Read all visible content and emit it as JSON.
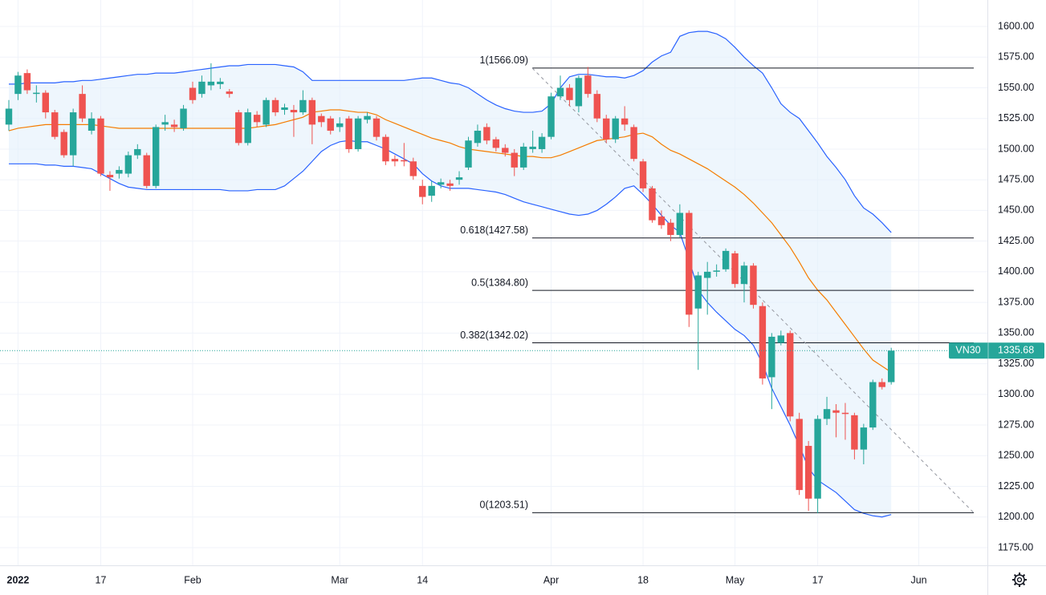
{
  "chart_data": {
    "type": "candlestick",
    "symbol": "VN30",
    "last_price": 1335.68,
    "ylim": [
      1160.6,
      1621.6
    ],
    "yticks": [
      {
        "value": 1175,
        "label": "1175.00"
      },
      {
        "value": 1200,
        "label": "1200.00"
      },
      {
        "value": 1225,
        "label": "1225.00"
      },
      {
        "value": 1250,
        "label": "1250.00"
      },
      {
        "value": 1275,
        "label": "1275.00"
      },
      {
        "value": 1300,
        "label": "1300.00"
      },
      {
        "value": 1325,
        "label": "1325.00"
      },
      {
        "value": 1350,
        "label": "1350.00"
      },
      {
        "value": 1375,
        "label": "1375.00"
      },
      {
        "value": 1400,
        "label": "1400.00"
      },
      {
        "value": 1425,
        "label": "1425.00"
      },
      {
        "value": 1450,
        "label": "1450.00"
      },
      {
        "value": 1475,
        "label": "1475.00"
      },
      {
        "value": 1500,
        "label": "1500.00"
      },
      {
        "value": 1525,
        "label": "1525.00"
      },
      {
        "value": 1550,
        "label": "1550.00"
      },
      {
        "value": 1575,
        "label": "1575.00"
      },
      {
        "value": 1600,
        "label": "1600.00"
      }
    ],
    "grid": true,
    "up_color": "#26a69a",
    "down_color": "#ef5350",
    "categories": [
      null,
      "2022",
      null,
      null,
      null,
      null,
      null,
      null,
      null,
      null,
      "17",
      null,
      null,
      null,
      null,
      null,
      null,
      null,
      null,
      null,
      "Feb",
      null,
      null,
      null,
      null,
      null,
      null,
      null,
      null,
      null,
      null,
      null,
      null,
      null,
      null,
      null,
      "Mar",
      null,
      null,
      null,
      null,
      null,
      null,
      null,
      null,
      "14",
      null,
      null,
      null,
      null,
      null,
      null,
      null,
      null,
      null,
      null,
      null,
      null,
      null,
      "Apr",
      null,
      null,
      null,
      null,
      null,
      null,
      null,
      null,
      null,
      "18",
      null,
      null,
      null,
      null,
      null,
      null,
      null,
      null,
      null,
      "May",
      null,
      null,
      null,
      null,
      null,
      null,
      null,
      null,
      "17",
      null,
      null,
      null,
      null,
      null,
      null,
      null,
      null,
      null,
      null,
      "Jun",
      null,
      null,
      null,
      null,
      null,
      null,
      null
    ],
    "open": [
      1520,
      1545,
      1562,
      1545,
      1546,
      1530,
      1514,
      1495,
      1545,
      1515,
      1525,
      1479,
      1480,
      1480,
      1495,
      1495,
      1470,
      1520,
      1520,
      1517,
      1550,
      1545,
      1552,
      1553,
      1547,
      1530,
      1505,
      1528,
      1520,
      1540,
      1532,
      1532,
      1530,
      1540,
      1527,
      1525,
      1518,
      1525,
      1500,
      1524,
      1525,
      1510,
      1492,
      1491,
      1490,
      1470,
      1462,
      1471,
      1472,
      1475,
      1485,
      1505,
      1518,
      1508,
      1501,
      1497,
      1485,
      1500,
      1500,
      1510,
      1543,
      1550,
      1535,
      1560,
      1545,
      1525,
      1508,
      1525,
      1518,
      1490,
      1468,
      1445,
      1440,
      1430,
      1448,
      1370,
      1395,
      1400,
      1402,
      1415,
      1390,
      1405,
      1372,
      1314,
      1342,
      1350,
      1280,
      1258,
      1215,
      1280,
      1287,
      1285,
      1283,
      1255,
      1273,
      1310,
      1310,
      null,
      null,
      null,
      null,
      null,
      null,
      null,
      null,
      null,
      null
    ],
    "high": [
      1540,
      1563,
      1565,
      1552,
      1548,
      1532,
      1516,
      1533,
      1552,
      1530,
      1527,
      1482,
      1486,
      1498,
      1504,
      1497,
      1520,
      1528,
      1524,
      1536,
      1555,
      1560,
      1570,
      1558,
      1549,
      1532,
      1533,
      1531,
      1542,
      1542,
      1537,
      1536,
      1548,
      1542,
      1529,
      1527,
      1526,
      1527,
      1527,
      1530,
      1527,
      1512,
      1495,
      1505,
      1493,
      1475,
      1474,
      1476,
      1475,
      1482,
      1510,
      1520,
      1521,
      1510,
      1504,
      1500,
      1505,
      1515,
      1513,
      1546,
      1560,
      1553,
      1560,
      1567,
      1548,
      1528,
      1527,
      1535,
      1520,
      1492,
      1470,
      1450,
      1443,
      1455,
      1450,
      1400,
      1408,
      1406,
      1419,
      1417,
      1408,
      1407,
      1375,
      1350,
      1352,
      1352,
      1285,
      1262,
      1283,
      1298,
      1292,
      1293,
      1285,
      1276,
      1312,
      1313,
      1338,
      null,
      null,
      null,
      null,
      null,
      null,
      null,
      null,
      null,
      null
    ],
    "low": [
      1515,
      1540,
      1545,
      1538,
      1525,
      1508,
      1493,
      1486,
      1522,
      1512,
      1478,
      1466,
      1476,
      1477,
      1492,
      1468,
      1468,
      1515,
      1514,
      1515,
      1537,
      1542,
      1548,
      1549,
      1542,
      1503,
      1503,
      1518,
      1518,
      1527,
      1528,
      1510,
      1528,
      1504,
      1518,
      1512,
      1514,
      1497,
      1498,
      1521,
      1507,
      1487,
      1486,
      1486,
      1475,
      1455,
      1457,
      1468,
      1466,
      1471,
      1483,
      1502,
      1504,
      1498,
      1494,
      1478,
      1483,
      1497,
      1497,
      1508,
      1540,
      1535,
      1530,
      1542,
      1522,
      1505,
      1505,
      1515,
      1490,
      1465,
      1440,
      1435,
      1425,
      1428,
      1355,
      1320,
      1365,
      1396,
      1400,
      1387,
      1375,
      1370,
      1308,
      1288,
      1340,
      1278,
      1218,
      1205,
      1203,
      1275,
      1265,
      1263,
      1247,
      1243,
      1271,
      1304,
      1308,
      null,
      null,
      null,
      null,
      null,
      null,
      null,
      null,
      null,
      null
    ],
    "close": [
      1533,
      1560,
      1548,
      1546,
      1530,
      1510,
      1495,
      1530,
      1525,
      1525,
      1480,
      1477,
      1483,
      1495,
      1500,
      1470,
      1518,
      1522,
      1518,
      1533,
      1540,
      1555,
      1555,
      1555,
      1545,
      1505,
      1530,
      1522,
      1540,
      1530,
      1534,
      1530,
      1540,
      1520,
      1522,
      1515,
      1521,
      1500,
      1525,
      1527,
      1510,
      1490,
      1490,
      1490,
      1478,
      1461,
      1470,
      1473,
      1470,
      1477,
      1507,
      1515,
      1507,
      1501,
      1497,
      1485,
      1502,
      1502,
      1510,
      1543,
      1550,
      1540,
      1558,
      1545,
      1525,
      1508,
      1525,
      1520,
      1492,
      1468,
      1442,
      1438,
      1430,
      1448,
      1365,
      1397,
      1400,
      1401,
      1417,
      1390,
      1405,
      1373,
      1313,
      1347,
      1348,
      1282,
      1222,
      1215,
      1280,
      1288,
      1285,
      1284,
      1255,
      1273,
      1310,
      1306,
      1335.68,
      null,
      null,
      null,
      null,
      null,
      null,
      null,
      null,
      null,
      null
    ],
    "bollinger": {
      "color": "#2962ff",
      "middle_color": "#f57c00",
      "fill": "#e3f0fb",
      "upper": [
        1553,
        1553,
        1554,
        1554,
        1554,
        1554,
        1555,
        1555,
        1556,
        1556,
        1557,
        1558,
        1559,
        1560,
        1561,
        1561,
        1562,
        1562,
        1562,
        1563,
        1564,
        1565,
        1566,
        1567,
        1568,
        1568,
        1569,
        1569,
        1569,
        1569,
        1568,
        1567,
        1563,
        1556,
        1556,
        1556,
        1556,
        1556,
        1556,
        1556,
        1556,
        1556,
        1556,
        1556,
        1557,
        1558,
        1558,
        1556,
        1554,
        1553,
        1550,
        1545,
        1540,
        1536,
        1533,
        1531,
        1530,
        1530,
        1531,
        1537,
        1550,
        1559,
        1561,
        1561,
        1560,
        1559,
        1559,
        1558,
        1560,
        1564,
        1571,
        1576,
        1579,
        1592,
        1595,
        1596,
        1596,
        1594,
        1590,
        1583,
        1575,
        1568,
        1562,
        1550,
        1537,
        1530,
        1525,
        1515,
        1505,
        1494,
        1485,
        1475,
        1462,
        1452,
        1447,
        1440,
        1432,
        null,
        null,
        null,
        null,
        null,
        null,
        null,
        null,
        null,
        null
      ],
      "middle": [
        1515,
        1517,
        1518,
        1519,
        1520,
        1520,
        1520,
        1520,
        1520,
        1520,
        1519,
        1518,
        1517,
        1517,
        1517,
        1517,
        1517,
        1517,
        1517,
        1517,
        1517,
        1517,
        1517,
        1517,
        1517,
        1517,
        1517,
        1518,
        1519,
        1520,
        1522,
        1524,
        1526,
        1530,
        1531,
        1532,
        1532,
        1531,
        1530,
        1530,
        1528,
        1524,
        1521,
        1518,
        1515,
        1512,
        1509,
        1507,
        1505,
        1502,
        1500,
        1499,
        1498,
        1497,
        1496,
        1495,
        1494,
        1494,
        1493,
        1493,
        1495,
        1498,
        1501,
        1504,
        1507,
        1508,
        1509,
        1510,
        1512,
        1513,
        1510,
        1504,
        1499,
        1496,
        1492,
        1488,
        1484,
        1479,
        1474,
        1469,
        1463,
        1456,
        1448,
        1440,
        1430,
        1420,
        1408,
        1395,
        1385,
        1377,
        1367,
        1357,
        1347,
        1337,
        1328,
        1323,
        1318,
        null,
        null,
        null,
        null,
        null,
        null,
        null,
        null,
        null,
        null
      ],
      "lower": [
        1488,
        1488,
        1488,
        1488,
        1487,
        1487,
        1486,
        1486,
        1485,
        1484,
        1480,
        1476,
        1472,
        1469,
        1468,
        1467,
        1467,
        1467,
        1467,
        1467,
        1467,
        1467,
        1467,
        1467,
        1466,
        1466,
        1466,
        1467,
        1467,
        1467,
        1470,
        1476,
        1482,
        1490,
        1498,
        1503,
        1506,
        1507,
        1506,
        1506,
        1503,
        1500,
        1496,
        1492,
        1488,
        1480,
        1474,
        1470,
        1468,
        1468,
        1468,
        1467,
        1466,
        1465,
        1463,
        1460,
        1457,
        1455,
        1453,
        1451,
        1449,
        1447,
        1446,
        1447,
        1450,
        1455,
        1461,
        1468,
        1470,
        1463,
        1455,
        1446,
        1438,
        1432,
        1410,
        1385,
        1375,
        1367,
        1360,
        1353,
        1348,
        1340,
        1325,
        1305,
        1290,
        1275,
        1258,
        1240,
        1230,
        1225,
        1220,
        1213,
        1206,
        1203,
        1201,
        1200,
        1202,
        null,
        null,
        null,
        null,
        null,
        null,
        null,
        null,
        null,
        null
      ]
    },
    "fib_levels": [
      {
        "value": 1566.09,
        "label": "1(1566.09)"
      },
      {
        "value": 1427.58,
        "label": "0.618(1427.58)"
      },
      {
        "value": 1384.8,
        "label": "0.5(1384.80)"
      },
      {
        "value": 1342.02,
        "label": "0.382(1342.02)"
      },
      {
        "value": 1203.51,
        "label": "0(1203.51)"
      }
    ]
  }
}
